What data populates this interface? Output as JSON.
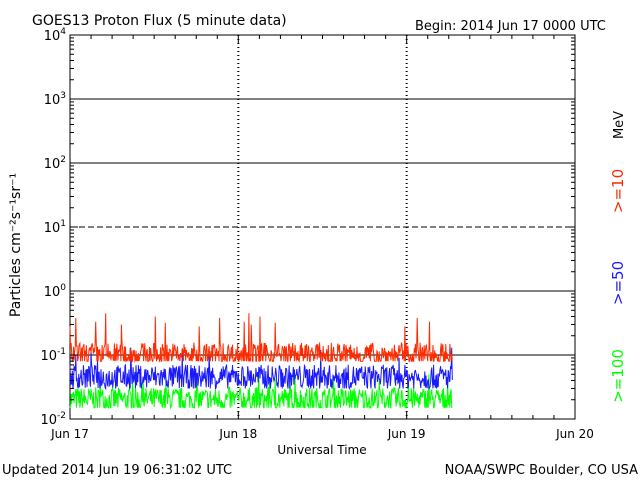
{
  "chart_data": {
    "type": "line",
    "title": "GOES13 Proton Flux (5 minute data)",
    "begin_label": "Begin: 2014 Jun 17 0000 UTC",
    "xlabel": "Universal Time",
    "ylabel": "Particles cm⁻²s⁻¹sr⁻¹",
    "y_scale": "log",
    "ylim": [
      0.01,
      10000
    ],
    "y_ticks": [
      {
        "base": "10",
        "exp": "4"
      },
      {
        "base": "10",
        "exp": "3"
      },
      {
        "base": "10",
        "exp": "2"
      },
      {
        "base": "10",
        "exp": "1"
      },
      {
        "base": "10",
        "exp": "0"
      },
      {
        "base": "10",
        "exp": "-1"
      },
      {
        "base": "10",
        "exp": "-2"
      }
    ],
    "xlim": [
      "2014-06-17 00:00",
      "2014-06-20 00:00"
    ],
    "x_ticks": [
      "Jun 17",
      "Jun 18",
      "Jun 19",
      "Jun 20"
    ],
    "grid": true,
    "data_end": "2014-06-19 06:30",
    "unit_label": "MeV",
    "series": [
      {
        "name": ">=10",
        "color": "#ff2a00",
        "baseline": 0.1,
        "min": 0.08,
        "max": 0.45,
        "spikes": [
          0.28,
          0.38,
          0.33,
          0.45,
          0.3,
          0.4,
          0.32
        ]
      },
      {
        "name": ">=50",
        "color": "#1a1aff",
        "baseline": 0.045,
        "min": 0.03,
        "max": 0.13,
        "spikes": [
          0.1,
          0.12,
          0.09,
          0.13,
          0.11
        ]
      },
      {
        "name": ">=100",
        "color": "#00ff00",
        "baseline": 0.02,
        "min": 0.015,
        "max": 0.05,
        "spikes": [
          0.04,
          0.05,
          0.045,
          0.042
        ]
      }
    ]
  },
  "footer": {
    "updated": "Updated 2014 Jun 19 06:31:02 UTC",
    "source": "NOAA/SWPC Boulder, CO USA"
  }
}
